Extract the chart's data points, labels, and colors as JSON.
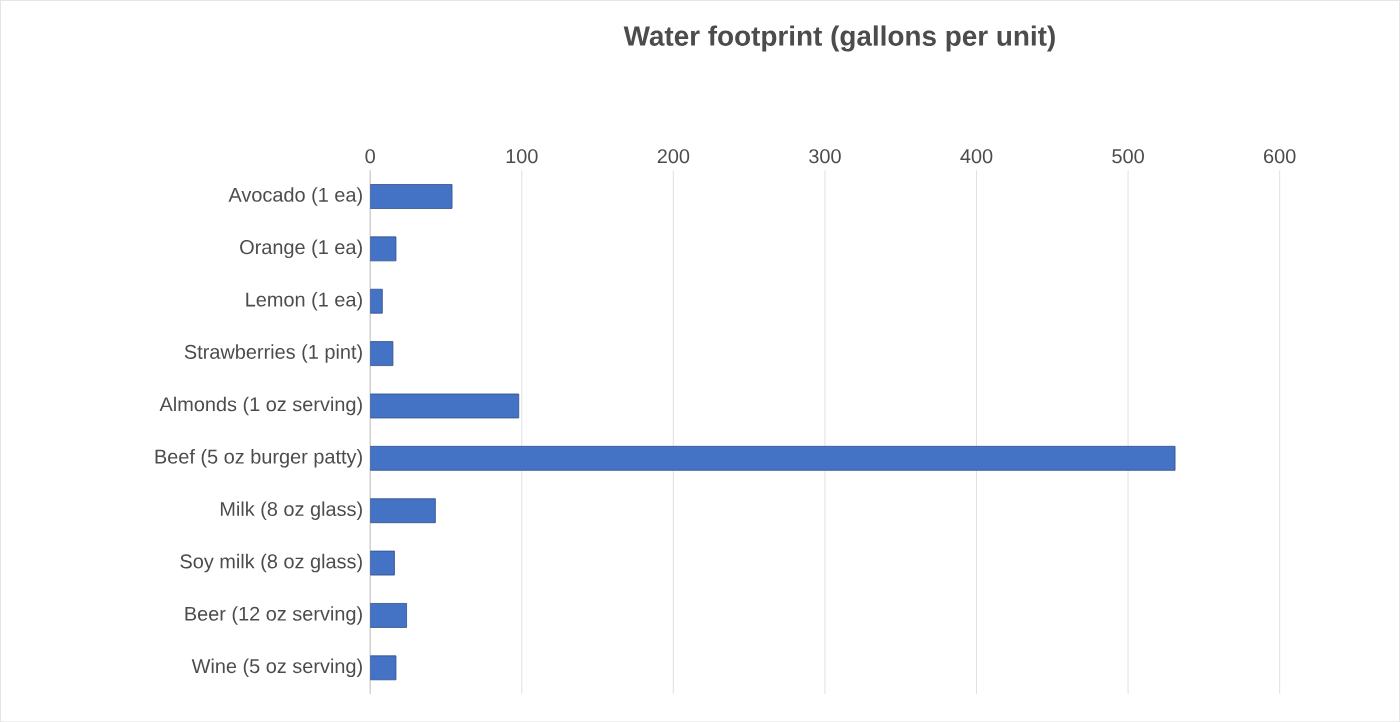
{
  "chart_data": {
    "type": "bar",
    "orientation": "horizontal",
    "title": "Water footprint (gallons per unit)",
    "categories": [
      "Avocado (1 ea)",
      "Orange (1 ea)",
      "Lemon (1 ea)",
      "Strawberries (1 pint)",
      "Almonds (1 oz serving)",
      "Beef (5 oz burger patty)",
      "Milk (8 oz glass)",
      "Soy milk (8 oz glass)",
      "Beer (12 oz serving)",
      "Wine (5 oz serving)"
    ],
    "values": [
      54,
      17,
      8,
      15,
      98,
      531,
      43,
      16,
      24,
      17
    ],
    "color": "#4472c4",
    "xlim": [
      0,
      600
    ],
    "xticks": [
      0,
      100,
      200,
      300,
      400,
      500,
      600
    ],
    "grid": "x"
  }
}
